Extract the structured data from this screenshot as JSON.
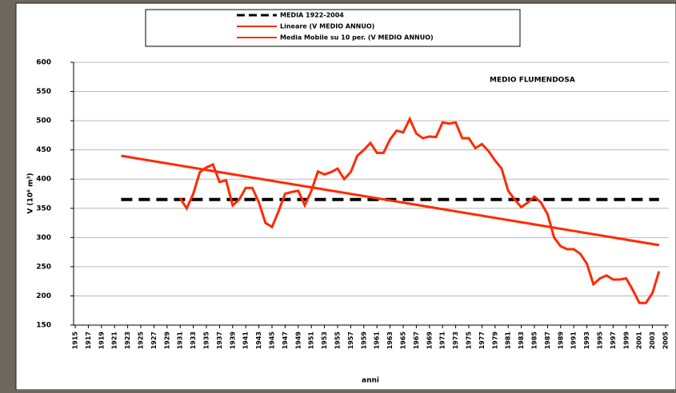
{
  "chart_data": {
    "type": "line",
    "annotation": "MEDIO FLUMENDOSA",
    "x_label": "anni",
    "y_label": "V (10⁶ m³)",
    "xlim": [
      1915,
      2005
    ],
    "xticks": [
      1915,
      1917,
      1919,
      1921,
      1923,
      1925,
      1927,
      1929,
      1931,
      1933,
      1935,
      1937,
      1939,
      1941,
      1943,
      1945,
      1947,
      1949,
      1951,
      1953,
      1955,
      1957,
      1959,
      1961,
      1963,
      1965,
      1967,
      1969,
      1971,
      1973,
      1975,
      1977,
      1979,
      1981,
      1983,
      1985,
      1987,
      1989,
      1991,
      1993,
      1995,
      1997,
      1999,
      2001,
      2003,
      2005
    ],
    "ylim": [
      150,
      600
    ],
    "yticks": [
      150,
      200,
      250,
      300,
      350,
      400,
      450,
      500,
      550,
      600
    ],
    "grid": true,
    "series": [
      {
        "name": "MEDIA 1922-2004",
        "color": "#000000",
        "dashed": true,
        "x": [
          1922,
          2004
        ],
        "values": [
          365,
          365
        ]
      },
      {
        "name": "Lineare (V MEDIO ANNUO)",
        "color": "#ff2a00",
        "dashed": false,
        "x": [
          1922,
          2004
        ],
        "values": [
          440,
          287
        ]
      },
      {
        "name": "Media Mobile su 10 per. (V MEDIO ANNUO)",
        "color": "#ff2a00",
        "dashed": false,
        "x": [
          1931,
          1932,
          1933,
          1934,
          1935,
          1936,
          1937,
          1938,
          1939,
          1940,
          1941,
          1942,
          1943,
          1944,
          1945,
          1946,
          1947,
          1948,
          1949,
          1950,
          1951,
          1952,
          1953,
          1954,
          1955,
          1956,
          1957,
          1958,
          1959,
          1960,
          1961,
          1962,
          1963,
          1964,
          1965,
          1966,
          1967,
          1968,
          1969,
          1970,
          1971,
          1972,
          1973,
          1974,
          1975,
          1976,
          1977,
          1978,
          1979,
          1980,
          1981,
          1982,
          1983,
          1984,
          1985,
          1986,
          1987,
          1988,
          1989,
          1990,
          1991,
          1992,
          1993,
          1994,
          1995,
          1996,
          1997,
          1998,
          1999,
          2000,
          2001,
          2002,
          2003,
          2004
        ],
        "values": [
          367,
          350,
          375,
          412,
          420,
          425,
          395,
          398,
          355,
          365,
          385,
          385,
          360,
          325,
          318,
          345,
          375,
          378,
          380,
          355,
          380,
          413,
          408,
          412,
          418,
          400,
          412,
          440,
          450,
          462,
          445,
          445,
          468,
          483,
          480,
          503,
          478,
          470,
          473,
          472,
          497,
          495,
          497,
          470,
          470,
          453,
          460,
          448,
          432,
          418,
          380,
          365,
          352,
          360,
          370,
          360,
          340,
          300,
          285,
          280,
          280,
          272,
          255,
          220,
          230,
          235,
          228,
          228,
          230,
          210,
          188,
          188,
          205,
          242
        ]
      }
    ]
  }
}
